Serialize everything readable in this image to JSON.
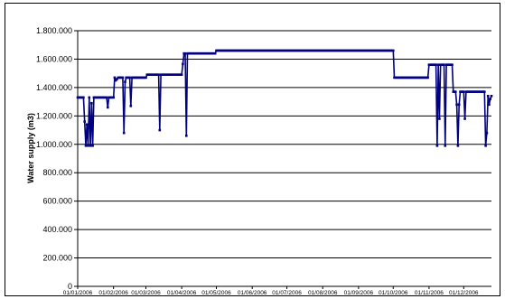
{
  "chart_data": {
    "type": "line",
    "title": "",
    "xlabel": "",
    "ylabel": "Water supply (m3)",
    "ylim": [
      0,
      1800000
    ],
    "y_ticks": [
      "0",
      "200.000",
      "400.000",
      "600.000",
      "800.000",
      "1.000.000",
      "1.200.000",
      "1.400.000",
      "1.600.000",
      "1.800.000"
    ],
    "x_ticks": [
      "01/01/2006",
      "01/02/2006",
      "01/03/2006",
      "01/04/2006",
      "01/05/2006",
      "01/06/2006",
      "01/07/2006",
      "01/08/2006",
      "01/09/2006",
      "01/10/2006",
      "01/11/2006",
      "01/12/2006"
    ],
    "grid": "horizontal",
    "legend": "none",
    "line_color": "#000080",
    "series": [
      {
        "values": [
          [
            "2006-01-01",
            1330000
          ],
          [
            "2006-01-06",
            1330000
          ],
          [
            "2006-01-08",
            990000
          ],
          [
            "2006-01-09",
            1140000
          ],
          [
            "2006-01-10",
            990000
          ],
          [
            "2006-01-11",
            1330000
          ],
          [
            "2006-01-12",
            990000
          ],
          [
            "2006-01-13",
            1290000
          ],
          [
            "2006-01-14",
            990000
          ],
          [
            "2006-01-15",
            1330000
          ],
          [
            "2006-01-26",
            1330000
          ],
          [
            "2006-01-27",
            1260000
          ],
          [
            "2006-01-28",
            1330000
          ],
          [
            "2006-02-01",
            1330000
          ],
          [
            "2006-02-02",
            1470000
          ],
          [
            "2006-02-03",
            1450000
          ],
          [
            "2006-02-05",
            1470000
          ],
          [
            "2006-02-09",
            1470000
          ],
          [
            "2006-02-10",
            1080000
          ],
          [
            "2006-02-11",
            1440000
          ],
          [
            "2006-02-12",
            1470000
          ],
          [
            "2006-02-15",
            1470000
          ],
          [
            "2006-02-16",
            1270000
          ],
          [
            "2006-02-17",
            1470000
          ],
          [
            "2006-03-01",
            1470000
          ],
          [
            "2006-03-02",
            1490000
          ],
          [
            "2006-03-12",
            1490000
          ],
          [
            "2006-03-13",
            1100000
          ],
          [
            "2006-03-14",
            1490000
          ],
          [
            "2006-04-01",
            1490000
          ],
          [
            "2006-04-03",
            1640000
          ],
          [
            "2006-04-04",
            1640000
          ],
          [
            "2006-04-05",
            1060000
          ],
          [
            "2006-04-06",
            1640000
          ],
          [
            "2006-04-30",
            1640000
          ],
          [
            "2006-05-01",
            1660000
          ],
          [
            "2006-10-01",
            1660000
          ],
          [
            "2006-10-02",
            1470000
          ],
          [
            "2006-10-31",
            1470000
          ],
          [
            "2006-11-01",
            1560000
          ],
          [
            "2006-11-07",
            1560000
          ],
          [
            "2006-11-08",
            990000
          ],
          [
            "2006-11-09",
            1560000
          ],
          [
            "2006-11-10",
            1180000
          ],
          [
            "2006-11-11",
            1560000
          ],
          [
            "2006-11-14",
            1560000
          ],
          [
            "2006-11-15",
            990000
          ],
          [
            "2006-11-16",
            1560000
          ],
          [
            "2006-11-21",
            1560000
          ],
          [
            "2006-11-22",
            1370000
          ],
          [
            "2006-11-24",
            1370000
          ],
          [
            "2006-11-25",
            1280000
          ],
          [
            "2006-11-26",
            990000
          ],
          [
            "2006-11-27",
            1280000
          ],
          [
            "2006-11-28",
            1370000
          ],
          [
            "2006-12-01",
            1370000
          ],
          [
            "2006-12-02",
            1180000
          ],
          [
            "2006-12-03",
            1370000
          ],
          [
            "2006-12-19",
            1370000
          ],
          [
            "2006-12-20",
            990000
          ],
          [
            "2006-12-21",
            1080000
          ],
          [
            "2006-12-22",
            1340000
          ],
          [
            "2006-12-23",
            1280000
          ],
          [
            "2006-12-24",
            1320000
          ],
          [
            "2006-12-25",
            1340000
          ]
        ]
      }
    ]
  }
}
